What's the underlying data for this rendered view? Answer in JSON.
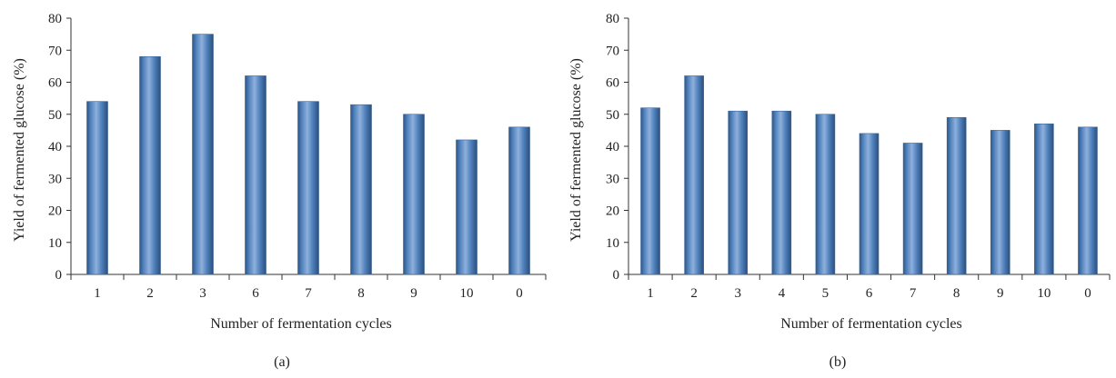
{
  "chart_data": [
    {
      "type": "bar",
      "caption": "(a)",
      "categories": [
        "1",
        "2",
        "3",
        "6",
        "7",
        "8",
        "9",
        "10",
        "0"
      ],
      "values": [
        54,
        68,
        75,
        62,
        54,
        53,
        50,
        42,
        46
      ],
      "xlabel": "Number of fermentation cycles",
      "ylabel": "Yield of fermented glucose (%)",
      "ylim": [
        0,
        80
      ],
      "yticks": [
        "0",
        "10",
        "20",
        "30",
        "40",
        "50",
        "60",
        "70",
        "80"
      ],
      "grid": false,
      "bar_color": "#4f81bd"
    },
    {
      "type": "bar",
      "caption": "(b)",
      "categories": [
        "1",
        "2",
        "3",
        "4",
        "5",
        "6",
        "7",
        "8",
        "9",
        "10",
        "0"
      ],
      "values": [
        52,
        62,
        51,
        51,
        50,
        44,
        41,
        49,
        45,
        47,
        46
      ],
      "xlabel": "Number of fermentation cycles",
      "ylabel": "Yield of fermented glucose (%)",
      "ylim": [
        0,
        80
      ],
      "yticks": [
        "0",
        "10",
        "20",
        "30",
        "40",
        "50",
        "60",
        "70",
        "80"
      ],
      "grid": false,
      "bar_color": "#4f81bd"
    }
  ]
}
